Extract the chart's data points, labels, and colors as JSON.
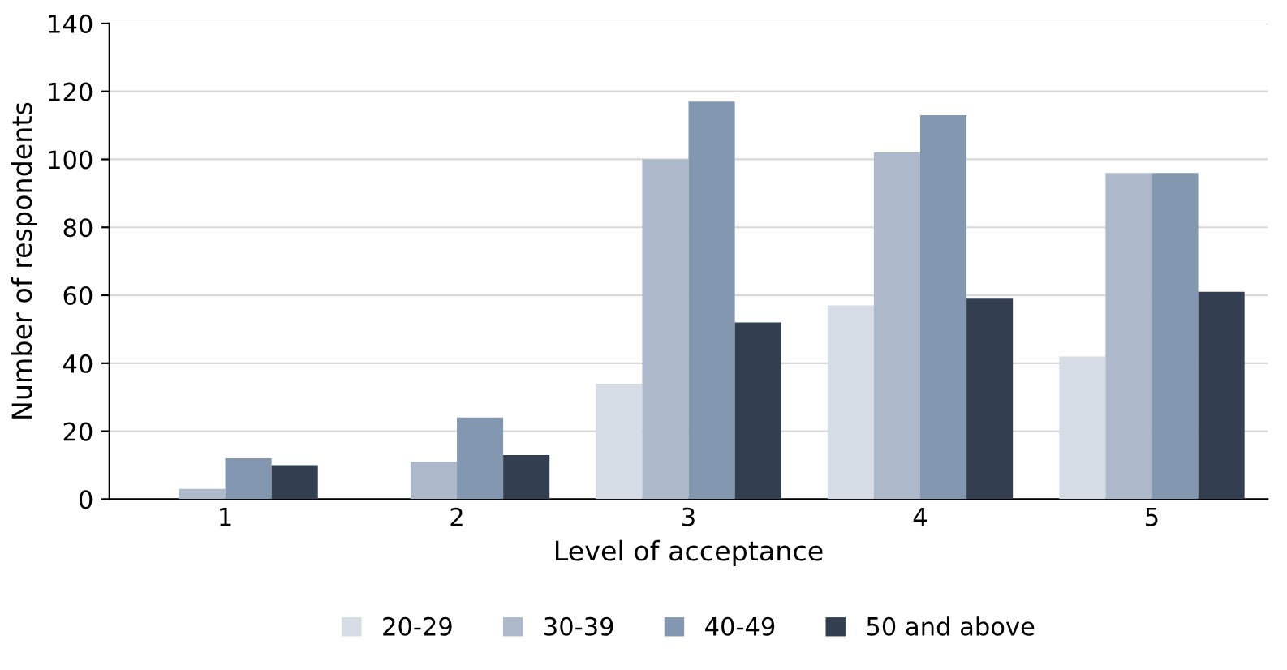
{
  "chart_data": {
    "type": "bar",
    "xlabel": "Level of acceptance",
    "ylabel": "Number of respondents",
    "categories": [
      "1",
      "2",
      "3",
      "4",
      "5"
    ],
    "series": [
      {
        "name": "20-29",
        "color": "#d6dce5",
        "values": [
          0,
          0,
          34,
          57,
          42
        ]
      },
      {
        "name": "30-39",
        "color": "#adb9ca",
        "values": [
          3,
          11,
          100,
          102,
          96
        ]
      },
      {
        "name": "40-49",
        "color": "#8497b0",
        "values": [
          12,
          24,
          117,
          113,
          96
        ]
      },
      {
        "name": "50 and above",
        "color": "#333f50",
        "values": [
          10,
          13,
          52,
          59,
          61
        ]
      }
    ],
    "ylim": [
      0,
      140
    ],
    "yticks": [
      0,
      20,
      40,
      60,
      80,
      100,
      120,
      140
    ],
    "grid": "y",
    "legend": "bottom"
  }
}
